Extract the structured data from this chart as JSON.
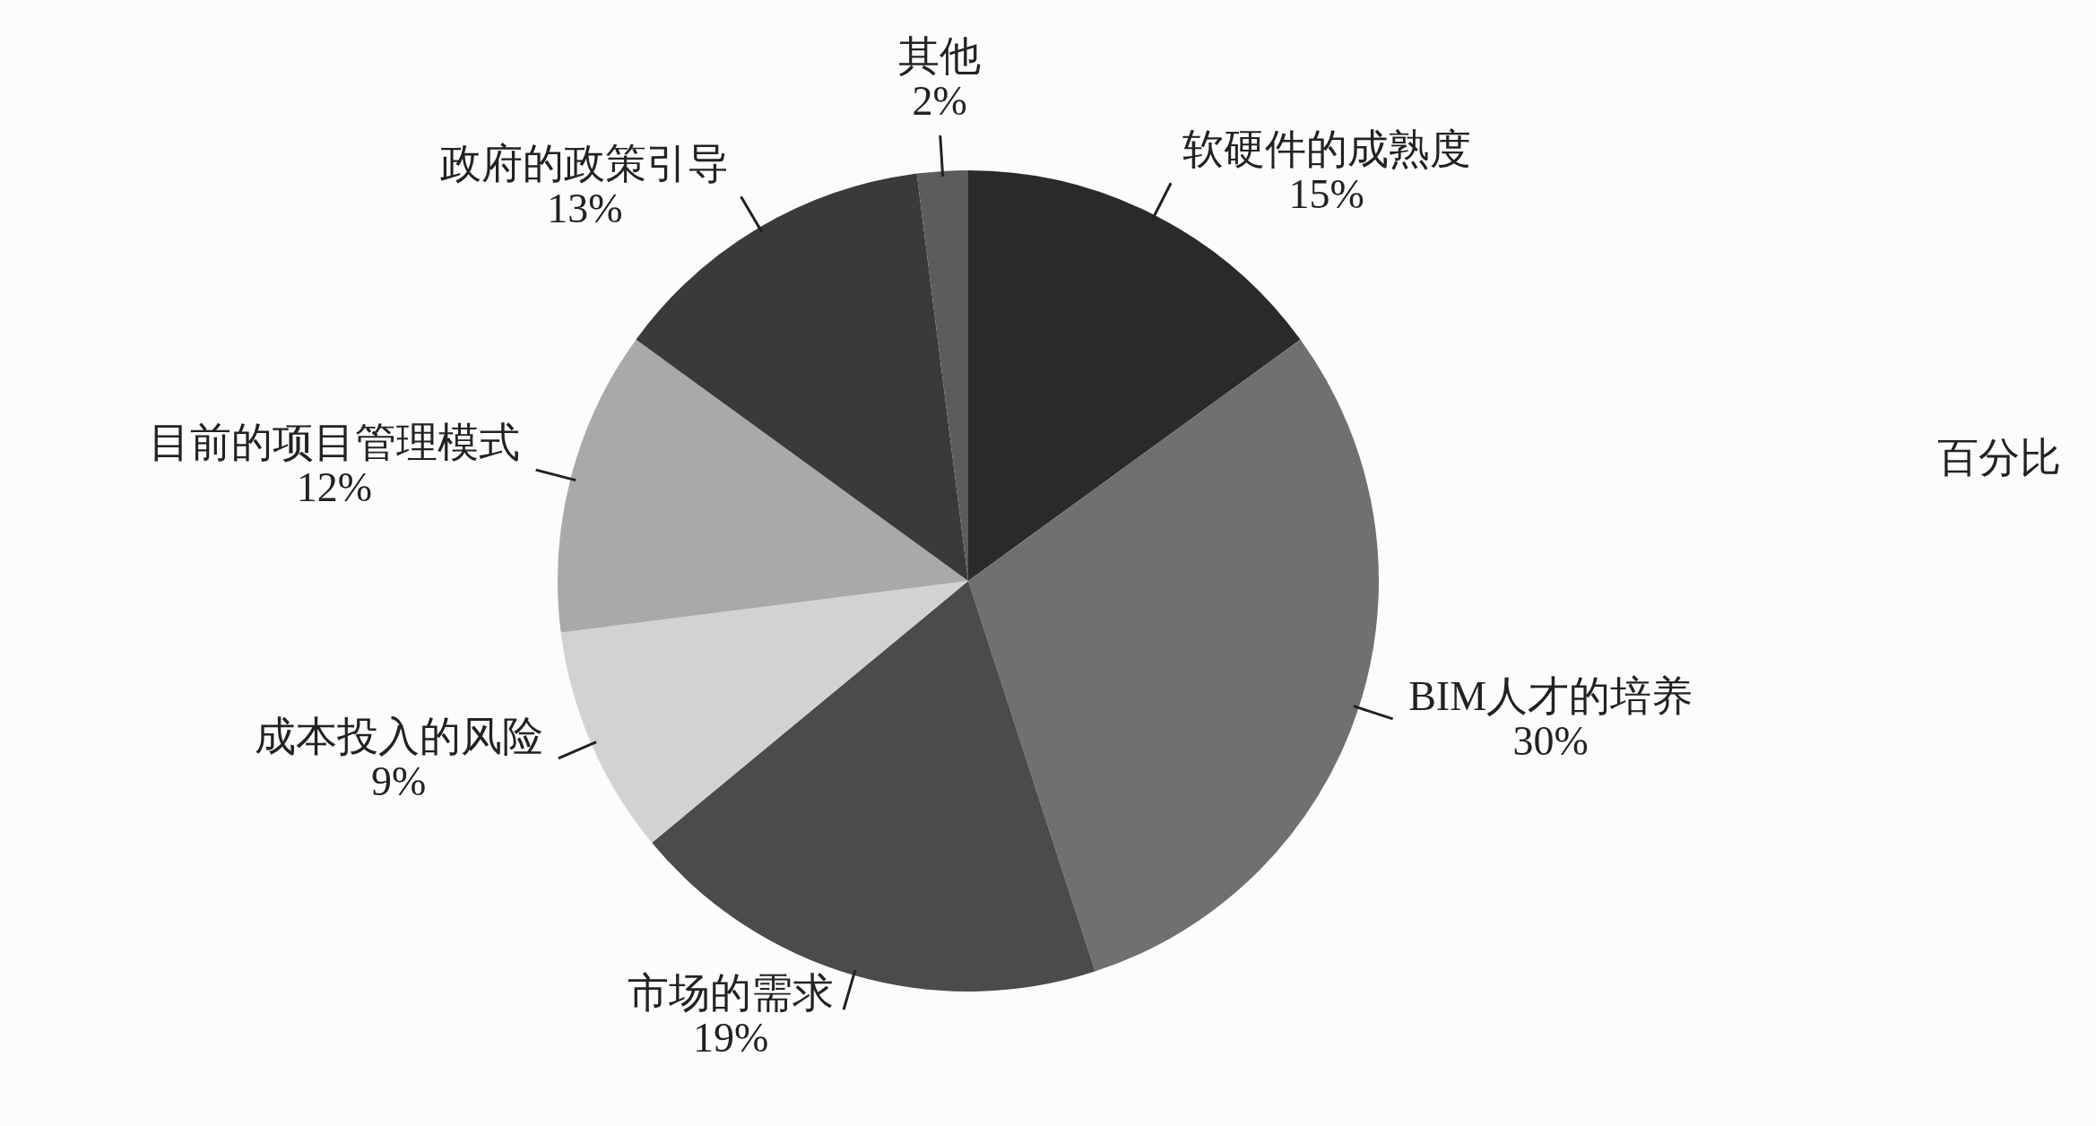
{
  "chart_data": {
    "type": "pie",
    "legend_title": "百分比",
    "categories": [
      "软硬件的成熟度",
      "BIM人才的培养",
      "市场的需求",
      "成本投入的风险",
      "目前的项目管理模式",
      "政府的政策引导",
      "其他"
    ],
    "values": [
      15,
      30,
      19,
      9,
      12,
      13,
      2
    ],
    "value_labels": [
      "15%",
      "30%",
      "19%",
      "9%",
      "12%",
      "13%",
      "2%"
    ],
    "colors": [
      "#2a2a2a",
      "#707070",
      "#4b4b4b",
      "#d2d2d2",
      "#a9a9a9",
      "#3a3a3a",
      "#5c5c5c"
    ]
  }
}
